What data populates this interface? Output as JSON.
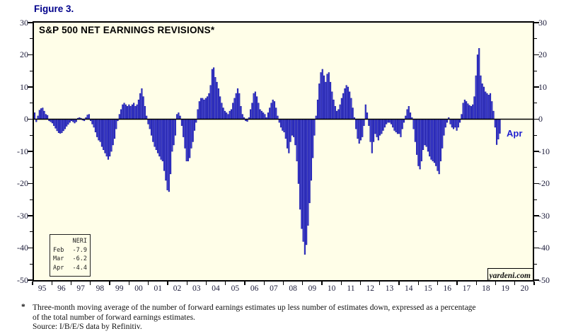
{
  "figure_label": "Figure 3.",
  "chart_data": {
    "type": "bar",
    "title": "S&P 500 NET EARNINGS REVISIONS*",
    "ylabel": "",
    "xlabel": "",
    "ylim": [
      -50,
      30
    ],
    "y_major_ticks": [
      30,
      20,
      10,
      0,
      -10,
      -20,
      -30,
      -40,
      -50
    ],
    "y_minor_step": 5,
    "x_years": [
      "95",
      "96",
      "97",
      "98",
      "99",
      "00",
      "01",
      "02",
      "03",
      "04",
      "05",
      "06",
      "07",
      "08",
      "09",
      "10",
      "11",
      "12",
      "13",
      "14",
      "15",
      "16",
      "17",
      "18",
      "19",
      "20"
    ],
    "x_axis_month_slots": 312,
    "grid": "off",
    "legend_position": "inside-bottom-left",
    "series": [
      {
        "name": "NERI (3-month moving average, %)",
        "start": "1995-01",
        "values_by_year": {
          "1995": [
            2.0,
            -0.8,
            1.0,
            2.8,
            3.3,
            3.5,
            2.5,
            1.5,
            1.2,
            -0.5,
            -0.8,
            -1.2
          ],
          "1996": [
            -2.0,
            -2.8,
            -3.6,
            -4.2,
            -4.4,
            -4.2,
            -3.6,
            -3.0,
            -2.2,
            -1.6,
            -1.0,
            -0.5
          ],
          "1997": [
            -0.8,
            -1.2,
            -0.8,
            0.3,
            0.5,
            0.3,
            -0.3,
            -0.5,
            0.5,
            1.3,
            1.5,
            -0.5
          ],
          "1998": [
            -1.5,
            -2.5,
            -4.0,
            -5.5,
            -6.5,
            -7.0,
            -8.5,
            -9.5,
            -10.5,
            -11.5,
            -12.5,
            -11.5
          ],
          "1999": [
            -10.0,
            -8.0,
            -6.0,
            -3.0,
            -0.5,
            1.5,
            3.0,
            4.5,
            5.0,
            4.5,
            4.0,
            4.5
          ],
          "2000": [
            4.0,
            4.5,
            5.0,
            4.0,
            4.5,
            6.0,
            8.0,
            9.5,
            7.0,
            4.0,
            1.0,
            -1.5
          ],
          "2001": [
            -3.0,
            -5.0,
            -7.0,
            -8.5,
            -9.5,
            -10.5,
            -11.5,
            -12.5,
            -13.0,
            -16.0,
            -19.0,
            -22.0
          ],
          "2002": [
            -22.5,
            -17.0,
            -10.0,
            -8.0,
            -5.0,
            1.5,
            2.0,
            1.0,
            -2.0,
            -5.5,
            -9.0,
            -13.0
          ],
          "2003": [
            -13.0,
            -12.0,
            -9.0,
            -7.0,
            -3.5,
            -1.0,
            3.0,
            5.5,
            6.5,
            6.5,
            6.0,
            6.5
          ],
          "2004": [
            7.0,
            8.0,
            10.5,
            15.5,
            16.0,
            13.0,
            11.5,
            9.5,
            7.0,
            5.0,
            3.5,
            2.5
          ],
          "2005": [
            2.0,
            1.5,
            2.5,
            3.0,
            5.0,
            6.5,
            8.0,
            9.5,
            8.0,
            4.0,
            1.5,
            0.5
          ],
          "2006": [
            -0.5,
            -0.7,
            0.5,
            3.0,
            5.0,
            8.0,
            8.5,
            7.0,
            5.0,
            3.0,
            2.5,
            2.0
          ],
          "2007": [
            1.5,
            0.5,
            2.0,
            3.5,
            5.0,
            6.0,
            5.5,
            3.5,
            1.0,
            -1.0,
            -2.5,
            -3.5
          ],
          "2008": [
            -4.0,
            -6.0,
            -9.0,
            -10.5,
            -7.0,
            -5.0,
            -5.5,
            -8.0,
            -13.0,
            -20.0,
            -28.0,
            -34.0
          ],
          "2009": [
            -38.0,
            -42.0,
            -39.0,
            -33.0,
            -26.0,
            -19.0,
            -12.0,
            -5.0,
            1.0,
            6.0,
            11.0,
            14.5
          ],
          "2010": [
            15.5,
            13.5,
            11.5,
            14.0,
            14.5,
            11.5,
            8.5,
            6.0,
            4.0,
            2.5,
            3.0,
            4.5
          ],
          "2011": [
            6.5,
            8.0,
            9.5,
            10.5,
            10.0,
            8.5,
            6.5,
            3.5,
            0.5,
            -3.0,
            -6.0,
            -7.5
          ],
          "2012": [
            -6.5,
            -5.5,
            -2.0,
            4.5,
            2.0,
            -2.0,
            -7.0,
            -10.5,
            -7.0,
            -4.5,
            -5.5,
            -6.5
          ],
          "2013": [
            -5.0,
            -4.5,
            -3.5,
            -2.5,
            -1.5,
            -1.0,
            -1.0,
            -1.5,
            -2.5,
            -3.5,
            -4.0,
            -4.5
          ],
          "2014": [
            -4.5,
            -5.5,
            -3.0,
            -1.0,
            1.0,
            3.0,
            4.0,
            2.0,
            0.5,
            -3.0,
            -7.0,
            -11.0
          ],
          "2015": [
            -14.5,
            -15.5,
            -13.0,
            -9.5,
            -8.0,
            -8.5,
            -10.0,
            -11.5,
            -12.5,
            -13.0,
            -13.5,
            -14.5
          ],
          "2016": [
            -16.0,
            -17.0,
            -13.0,
            -9.0,
            -5.0,
            -2.5,
            -1.0,
            0.5,
            -1.5,
            -2.5,
            -3.0,
            -2.5
          ],
          "2017": [
            -3.5,
            -2.5,
            -1.0,
            1.5,
            5.0,
            6.0,
            5.5,
            4.8,
            4.3,
            4.0,
            4.5,
            7.0
          ],
          "2018": [
            13.5,
            20.0,
            22.0,
            13.5,
            11.0,
            10.0,
            8.5,
            8.0,
            7.5,
            8.0,
            5.5,
            2.5
          ],
          "2019": [
            -2.5,
            -7.9,
            -6.2,
            -4.4
          ]
        }
      }
    ],
    "annotation": {
      "label": "Apr"
    },
    "legend": {
      "header": "NERI",
      "rows": [
        {
          "month": "Feb",
          "value": "-7.9"
        },
        {
          "month": "Mar",
          "value": "-6.2"
        },
        {
          "month": "Apr",
          "value": "-4.4"
        }
      ]
    },
    "credit": "yardeni.com",
    "colors": {
      "bar_fill": "#3d3de0",
      "bar_stroke": "#18189a",
      "plot_bg": "#fffee8",
      "axis": "#000000",
      "figure_label": "#00008b",
      "annotation": "#1f1fd0"
    }
  },
  "footnote": {
    "marker": "*",
    "line1": "Three-month moving average of the number of forward earnings estimates up less number of estimates down, expressed as a percentage",
    "line2": "of the total number of forward earnings estimates.",
    "line3": "Source: I/B/E/S data by Refinitiv."
  }
}
